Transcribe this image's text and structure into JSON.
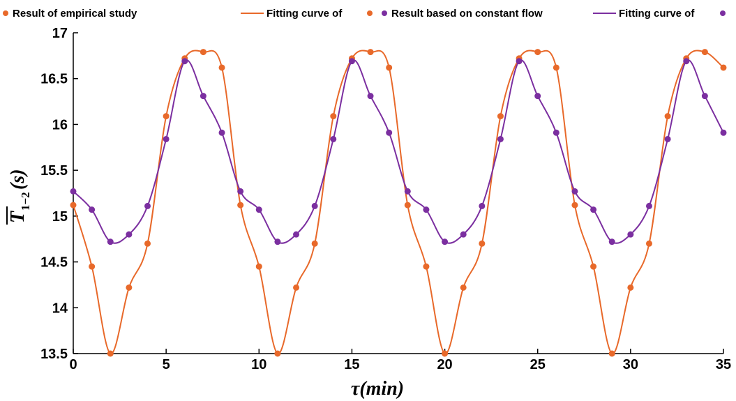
{
  "chart_data": {
    "type": "line",
    "xlabel": "τ(min)",
    "ylabel": {
      "main": "T",
      "subscript": "1−2",
      "suffix": "(s)"
    },
    "xlim": [
      0,
      35
    ],
    "ylim": [
      13.5,
      17
    ],
    "xticks": [
      "0",
      "5",
      "10",
      "15",
      "20",
      "25",
      "30",
      "35"
    ],
    "yticks": [
      "13.5",
      "14",
      "14.5",
      "15",
      "15.5",
      "16",
      "16.5",
      "17"
    ],
    "grid": false,
    "legend_position": "top",
    "legend": [
      "Result of empirical study",
      "Fitting curve of",
      "Result based on constant flow",
      "Fitting curve of"
    ],
    "colors": {
      "empirical": "#e8692a",
      "constant": "#7b2fa0"
    },
    "x": [
      0,
      1,
      2,
      3,
      4,
      5,
      6,
      7,
      8,
      9,
      10,
      11,
      12,
      13,
      14,
      15,
      16,
      17,
      18,
      19,
      20,
      21,
      22,
      23,
      24,
      25,
      26,
      27,
      28,
      29,
      30,
      31,
      32,
      33,
      34,
      35
    ],
    "series": [
      {
        "name": "Result of empirical study",
        "color": "#e8692a",
        "values": [
          15.12,
          14.45,
          13.5,
          14.22,
          14.7,
          16.09,
          16.72,
          16.79,
          16.62,
          15.12,
          14.45,
          13.5,
          14.22,
          14.7,
          16.09,
          16.72,
          16.79,
          16.62,
          15.12,
          14.45,
          13.5,
          14.22,
          14.7,
          16.09,
          16.72,
          16.79,
          16.62,
          15.12,
          14.45,
          13.5,
          14.22,
          14.7,
          16.09,
          16.72,
          16.79,
          16.62
        ]
      },
      {
        "name": "Result based on constant flow",
        "color": "#7b2fa0",
        "values": [
          15.27,
          15.07,
          14.72,
          14.8,
          15.11,
          15.84,
          16.69,
          16.31,
          15.91,
          15.27,
          15.07,
          14.72,
          14.8,
          15.11,
          15.84,
          16.69,
          16.31,
          15.91,
          15.27,
          15.07,
          14.72,
          14.8,
          15.11,
          15.84,
          16.69,
          16.31,
          15.91,
          15.27,
          15.07,
          14.72,
          14.8,
          15.11,
          15.84,
          16.69,
          16.31,
          15.91
        ]
      }
    ]
  }
}
